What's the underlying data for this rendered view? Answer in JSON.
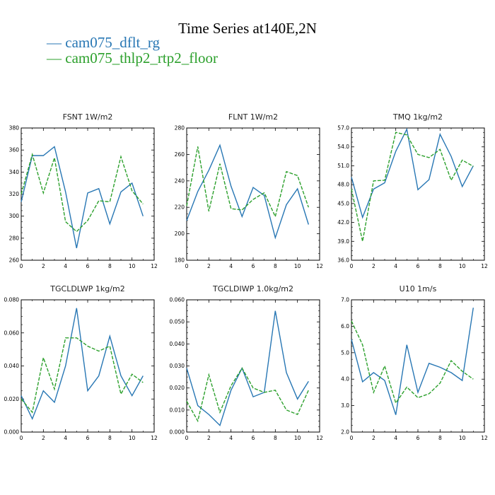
{
  "figure": {
    "title": "Time Series at140E,2N",
    "legend": [
      {
        "label": "— cam075_dflt_rg",
        "color": "#2877b4"
      },
      {
        "label": "— cam075_thlp2_rtp2_floor",
        "color": "#2ca02c"
      }
    ]
  },
  "chart_data": [
    {
      "type": "line",
      "title": "FSNT   1W/m2",
      "x": [
        0,
        1,
        2,
        3,
        4,
        5,
        6,
        7,
        8,
        9,
        10,
        11
      ],
      "xlim": [
        0,
        12
      ],
      "xticks": [
        "0",
        "2",
        "4",
        "6",
        "8",
        "10",
        "12"
      ],
      "ylim": [
        260,
        380
      ],
      "yticks": [
        "260",
        "280",
        "300",
        "320",
        "340",
        "360",
        "380"
      ],
      "series": [
        {
          "name": "cam075_dflt_rg",
          "color": "#2877b4",
          "dash": "",
          "values": [
            313,
            355,
            355,
            363,
            322,
            271,
            321,
            325,
            293,
            322,
            330,
            300
          ]
        },
        {
          "name": "cam075_thlp2_rtp2_floor",
          "color": "#2ca02c",
          "dash": "5,2",
          "values": [
            320,
            356,
            321,
            353,
            295,
            286,
            296,
            314,
            313,
            354,
            323,
            311
          ]
        }
      ]
    },
    {
      "type": "line",
      "title": "FLNT   1W/m2",
      "x": [
        0,
        1,
        2,
        3,
        4,
        5,
        6,
        7,
        8,
        9,
        10,
        11
      ],
      "xlim": [
        0,
        12
      ],
      "xticks": [
        "0",
        "2",
        "4",
        "6",
        "8",
        "10",
        "12"
      ],
      "ylim": [
        180,
        280
      ],
      "yticks": [
        "180",
        "200",
        "220",
        "240",
        "260",
        "280"
      ],
      "series": [
        {
          "name": "cam075_dflt_rg",
          "color": "#2877b4",
          "dash": "",
          "values": [
            210,
            232,
            248,
            267,
            236,
            213,
            235,
            229,
            197,
            222,
            234,
            207
          ]
        },
        {
          "name": "cam075_thlp2_rtp2_floor",
          "color": "#2ca02c",
          "dash": "5,2",
          "values": [
            221,
            266,
            217,
            253,
            219,
            218,
            226,
            231,
            213,
            247,
            244,
            220
          ]
        }
      ]
    },
    {
      "type": "line",
      "title": "TMQ   1kg/m2",
      "x": [
        0,
        1,
        2,
        3,
        4,
        5,
        6,
        7,
        8,
        9,
        10,
        11
      ],
      "xlim": [
        0,
        12
      ],
      "xticks": [
        "0",
        "2",
        "4",
        "6",
        "8",
        "10",
        "12"
      ],
      "ylim": [
        36,
        57
      ],
      "yticks": [
        "36.0",
        "39.0",
        "42.0",
        "45.0",
        "48.0",
        "51.0",
        "54.0",
        "57.0"
      ],
      "series": [
        {
          "name": "cam075_dflt_rg",
          "color": "#2877b4",
          "dash": "",
          "values": [
            49.2,
            42.8,
            47.3,
            48.3,
            53.3,
            56.8,
            47.2,
            48.8,
            56.0,
            52.5,
            47.7,
            51.0
          ]
        },
        {
          "name": "cam075_thlp2_rtp2_floor",
          "color": "#2ca02c",
          "dash": "5,2",
          "values": [
            47.3,
            39.0,
            48.6,
            48.7,
            56.3,
            55.9,
            52.8,
            52.3,
            53.6,
            48.7,
            51.9,
            50.9
          ]
        }
      ]
    },
    {
      "type": "line",
      "title": "TGCLDLWP   1kg/m2",
      "x": [
        0,
        1,
        2,
        3,
        4,
        5,
        6,
        7,
        8,
        9,
        10,
        11
      ],
      "xlim": [
        0,
        12
      ],
      "xticks": [
        "0",
        "2",
        "4",
        "6",
        "8",
        "10",
        "12"
      ],
      "ylim": [
        0,
        0.08
      ],
      "yticks": [
        "0.000",
        "0.020",
        "0.040",
        "0.060",
        "0.080"
      ],
      "series": [
        {
          "name": "cam075_dflt_rg",
          "color": "#2877b4",
          "dash": "",
          "values": [
            0.022,
            0.008,
            0.025,
            0.018,
            0.04,
            0.075,
            0.025,
            0.034,
            0.058,
            0.034,
            0.022,
            0.034
          ]
        },
        {
          "name": "cam075_thlp2_rtp2_floor",
          "color": "#2ca02c",
          "dash": "5,2",
          "values": [
            0.02,
            0.012,
            0.045,
            0.026,
            0.057,
            0.057,
            0.052,
            0.049,
            0.052,
            0.023,
            0.035,
            0.03
          ]
        }
      ]
    },
    {
      "type": "line",
      "title": "TGCLDIWP   1.0kg/m2",
      "x": [
        0,
        1,
        2,
        3,
        4,
        5,
        6,
        7,
        8,
        9,
        10,
        11
      ],
      "xlim": [
        0,
        12
      ],
      "xticks": [
        "0",
        "2",
        "4",
        "6",
        "8",
        "10",
        "12"
      ],
      "ylim": [
        0,
        0.06
      ],
      "yticks": [
        "0.000",
        "0.010",
        "0.020",
        "0.030",
        "0.040",
        "0.050",
        "0.060"
      ],
      "series": [
        {
          "name": "cam075_dflt_rg",
          "color": "#2877b4",
          "dash": "",
          "values": [
            0.029,
            0.012,
            0.008,
            0.003,
            0.019,
            0.029,
            0.016,
            0.018,
            0.055,
            0.027,
            0.015,
            0.023
          ]
        },
        {
          "name": "cam075_thlp2_rtp2_floor",
          "color": "#2ca02c",
          "dash": "5,2",
          "values": [
            0.014,
            0.005,
            0.026,
            0.009,
            0.021,
            0.029,
            0.02,
            0.018,
            0.019,
            0.01,
            0.008,
            0.019
          ]
        }
      ]
    },
    {
      "type": "line",
      "title": "U10   1m/s",
      "x": [
        0,
        1,
        2,
        3,
        4,
        5,
        6,
        7,
        8,
        9,
        10,
        11
      ],
      "xlim": [
        0,
        12
      ],
      "xticks": [
        "0",
        "2",
        "4",
        "6",
        "8",
        "10",
        "12"
      ],
      "ylim": [
        2,
        7
      ],
      "yticks": [
        "2.0",
        "3.0",
        "4.0",
        "5.0",
        "6.0",
        "7.0"
      ],
      "series": [
        {
          "name": "cam075_dflt_rg",
          "color": "#2877b4",
          "dash": "",
          "values": [
            5.5,
            3.9,
            4.25,
            3.95,
            2.65,
            5.3,
            3.5,
            4.6,
            4.45,
            4.25,
            3.95,
            6.7
          ]
        },
        {
          "name": "cam075_thlp2_rtp2_floor",
          "color": "#2ca02c",
          "dash": "5,2",
          "values": [
            6.2,
            5.3,
            3.5,
            4.5,
            3.1,
            3.7,
            3.3,
            3.45,
            3.85,
            4.7,
            4.3,
            4.0
          ]
        }
      ]
    }
  ]
}
